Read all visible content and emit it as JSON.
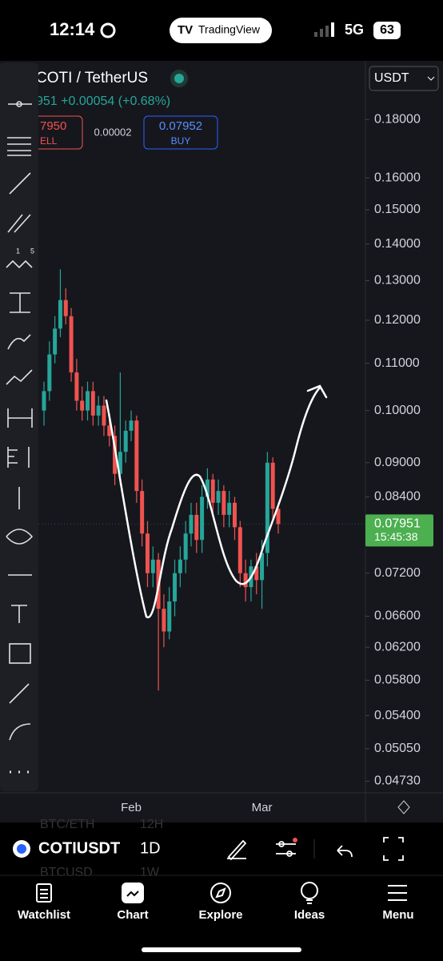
{
  "status_bar": {
    "time": "12:14",
    "app": "TradingView",
    "network": "5G",
    "battery": "63"
  },
  "header": {
    "symbol": "COTI / TetherUS",
    "currency": "USDT",
    "change_line": "951 +0.00054 (+0.68%)",
    "sell_price": "7950",
    "sell_label": "ELL",
    "spread": "0.00002",
    "buy_price": "0.07952",
    "buy_label": "BUY"
  },
  "toolbar": {
    "fib_labels": [
      "1",
      "5"
    ]
  },
  "chart_data": {
    "type": "candlestick",
    "log_scale": true,
    "grid": false,
    "up_color": "#26a69a",
    "down_color": "#ef5350",
    "categories": [
      null,
      null,
      null,
      null,
      null,
      null,
      null,
      null,
      null,
      null,
      null,
      null,
      null,
      null,
      null,
      null,
      "Feb",
      null,
      null,
      null,
      null,
      null,
      null,
      null,
      null,
      null,
      null,
      null,
      null,
      null,
      null,
      null,
      null,
      null,
      null,
      null,
      null,
      null,
      null,
      null,
      "Mar",
      null,
      null,
      null
    ],
    "open": [
      0.1,
      0.104,
      0.112,
      0.118,
      0.125,
      0.121,
      0.108,
      0.102,
      0.1,
      0.104,
      0.099,
      0.101,
      0.097,
      0.095,
      0.088,
      0.092,
      0.096,
      0.098,
      0.085,
      0.078,
      0.072,
      0.074,
      0.067,
      0.064,
      0.068,
      0.072,
      0.074,
      0.078,
      0.081,
      0.077,
      0.084,
      0.087,
      0.083,
      0.085,
      0.081,
      0.083,
      0.079,
      0.072,
      0.07,
      0.073,
      0.071,
      0.075,
      0.09,
      0.082
    ],
    "high": [
      0.106,
      0.115,
      0.121,
      0.133,
      0.128,
      0.123,
      0.111,
      0.105,
      0.106,
      0.106,
      0.103,
      0.103,
      0.099,
      0.097,
      0.108,
      0.098,
      0.1,
      0.099,
      0.087,
      0.08,
      0.076,
      0.075,
      0.069,
      0.07,
      0.074,
      0.076,
      0.08,
      0.083,
      0.083,
      0.086,
      0.089,
      0.088,
      0.087,
      0.086,
      0.085,
      0.084,
      0.08,
      0.074,
      0.074,
      0.075,
      0.077,
      0.092,
      0.091,
      0.083
    ],
    "low": [
      0.097,
      0.102,
      0.11,
      0.116,
      0.119,
      0.106,
      0.1,
      0.098,
      0.098,
      0.097,
      0.097,
      0.095,
      0.093,
      0.086,
      0.086,
      0.09,
      0.094,
      0.083,
      0.076,
      0.07,
      0.07,
      0.0568,
      0.062,
      0.063,
      0.066,
      0.07,
      0.072,
      0.076,
      0.075,
      0.075,
      0.082,
      0.081,
      0.081,
      0.079,
      0.079,
      0.077,
      0.07,
      0.068,
      0.068,
      0.069,
      0.067,
      0.073,
      0.08,
      0.078
    ],
    "close": [
      0.104,
      0.112,
      0.118,
      0.125,
      0.121,
      0.108,
      0.102,
      0.1,
      0.104,
      0.099,
      0.101,
      0.097,
      0.095,
      0.088,
      0.092,
      0.096,
      0.098,
      0.085,
      0.078,
      0.072,
      0.074,
      0.067,
      0.064,
      0.068,
      0.072,
      0.074,
      0.078,
      0.081,
      0.077,
      0.084,
      0.087,
      0.083,
      0.085,
      0.081,
      0.083,
      0.079,
      0.072,
      0.07,
      0.073,
      0.071,
      0.075,
      0.09,
      0.082,
      0.0795
    ],
    "ylim": [
      0.0462,
      0.202
    ],
    "yticks": [
      {
        "value": 0.18,
        "label": "0.18000"
      },
      {
        "value": 0.16,
        "label": "0.16000"
      },
      {
        "value": 0.15,
        "label": "0.15000"
      },
      {
        "value": 0.14,
        "label": "0.14000"
      },
      {
        "value": 0.13,
        "label": "0.13000"
      },
      {
        "value": 0.12,
        "label": "0.12000"
      },
      {
        "value": 0.11,
        "label": "0.11000"
      },
      {
        "value": 0.1,
        "label": "0.10000"
      },
      {
        "value": 0.09,
        "label": "0.09000"
      },
      {
        "value": 0.084,
        "label": "0.08400"
      },
      {
        "value": 0.072,
        "label": "0.07200"
      },
      {
        "value": 0.066,
        "label": "0.06600"
      },
      {
        "value": 0.062,
        "label": "0.06200"
      },
      {
        "value": 0.058,
        "label": "0.05800"
      },
      {
        "value": 0.054,
        "label": "0.05400"
      },
      {
        "value": 0.0505,
        "label": "0.05050"
      },
      {
        "value": 0.0473,
        "label": "0.04730"
      }
    ],
    "last_price": {
      "value": 0.07951,
      "label": "0.07951"
    },
    "countdown": "15:45:38"
  },
  "bottom_bar": {
    "symbol": "COTIUSDT",
    "interval": "1D",
    "ghost_items": [
      "BTC/ETH",
      "12H",
      "BTCUSD",
      "1W"
    ]
  },
  "nav": [
    "Watchlist",
    "Chart",
    "Explore",
    "Ideas",
    "Menu"
  ]
}
